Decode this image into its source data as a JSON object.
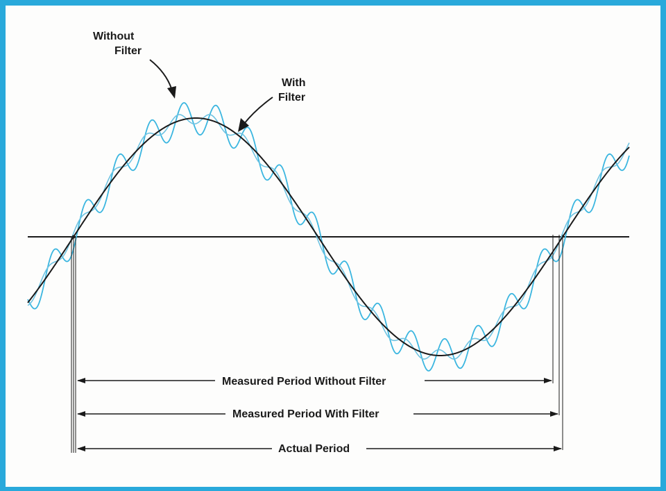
{
  "annotations": {
    "without_filter": [
      "Without",
      "Filter"
    ],
    "with_filter": [
      "With",
      "Filter"
    ]
  },
  "periods": {
    "measured_without_filter": "Measured Period Without Filter",
    "measured_with_filter": "Measured Period With Filter",
    "actual": "Actual Period"
  },
  "colors": {
    "border": "#29a9db",
    "noisy_signal": "#3bb6e0",
    "filtered_signal": "#6fc3e2",
    "reference_signal": "#1a1a1a"
  }
}
